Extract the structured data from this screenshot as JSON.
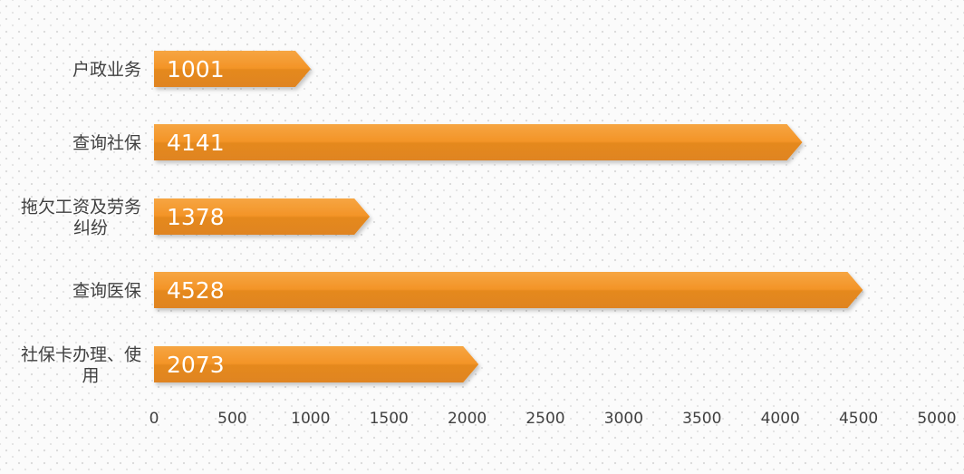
{
  "chart_data": {
    "type": "bar",
    "orientation": "horizontal",
    "categories": [
      "户政业务",
      "查询社保",
      "拖欠工资及劳务纠纷",
      "查询医保",
      "社保卡办理、使用"
    ],
    "category_label_lines": [
      [
        "户政业务"
      ],
      [
        "查询社保"
      ],
      [
        "拖欠工资及劳务",
        "纠纷"
      ],
      [
        "查询医保"
      ],
      [
        "社保卡办理、使",
        "用"
      ]
    ],
    "values": [
      1001,
      4141,
      1378,
      4528,
      2073
    ],
    "data_labels": [
      "1001",
      "4141",
      "1378",
      "4528",
      "2073"
    ],
    "xlim": [
      0,
      5000
    ],
    "xticks": [
      "0",
      "500",
      "1000",
      "1500",
      "2000",
      "2500",
      "3000",
      "3500",
      "4000",
      "4500",
      "5000"
    ],
    "title": "",
    "xlabel": "",
    "ylabel": "",
    "grid": false,
    "legend": "none",
    "colors": {
      "bar_top": "#f6a542",
      "bar_main": "#f39427",
      "bar_bottom": "#df8420",
      "data_label": "#ffffff",
      "text": "#404040",
      "axis": "#d9d9d9"
    }
  }
}
